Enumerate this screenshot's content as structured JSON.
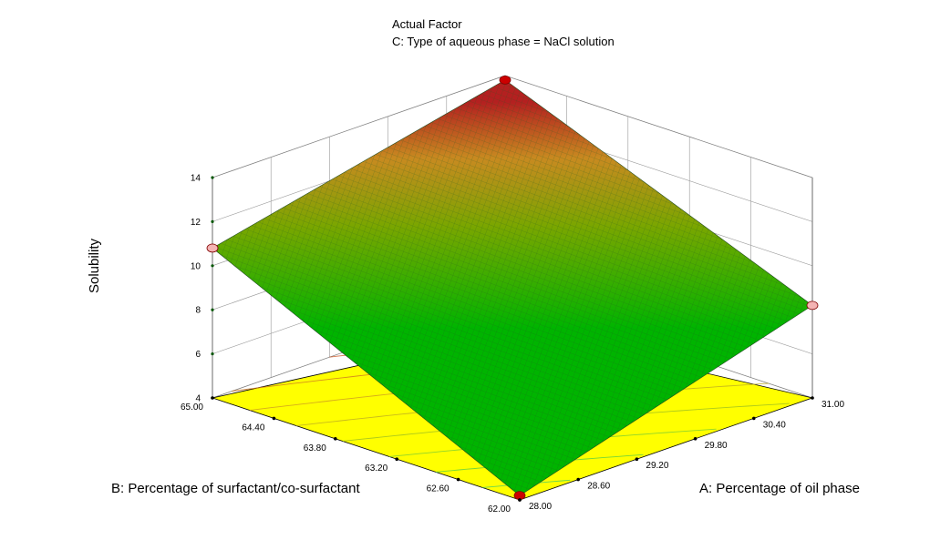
{
  "chart_data": {
    "type": "surface3d",
    "title": "Actual Factor",
    "subtitle": "C: Type of aqueous phase = NaCl solution",
    "xlabel": "A: Percentage of oil phase",
    "ylabel": "B: Percentage of surfactant/co-surfactant",
    "zlabel": "Solubility",
    "x_ticks": [
      "28.00",
      "28.60",
      "29.20",
      "29.80",
      "30.40",
      "31.00"
    ],
    "y_ticks": [
      "62.00",
      "62.60",
      "63.20",
      "63.80",
      "64.40",
      "65.00"
    ],
    "z_ticks": [
      "4",
      "6",
      "8",
      "10",
      "12",
      "14"
    ],
    "xlim": [
      28,
      31
    ],
    "ylim": [
      62,
      65
    ],
    "zlim": [
      4,
      14
    ],
    "surface_corners": [
      {
        "x": 28,
        "y": 62,
        "z": 4.2
      },
      {
        "x": 31,
        "y": 62,
        "z": 8.2
      },
      {
        "x": 28,
        "y": 65,
        "z": 10.8
      },
      {
        "x": 31,
        "y": 65,
        "z": 13.8
      }
    ],
    "design_points": [
      {
        "x": 28,
        "y": 62,
        "z": 4.2,
        "color": "#cc0000"
      },
      {
        "x": 31,
        "y": 62,
        "z": 8.2,
        "color": "#f4b4b4"
      },
      {
        "x": 28,
        "y": 65,
        "z": 10.8,
        "color": "#f4b4b4"
      },
      {
        "x": 31,
        "y": 65,
        "z": 13.8,
        "color": "#cc0000"
      }
    ],
    "colors": {
      "low": "#00b400",
      "mid": "#c8a000",
      "high": "#b42020",
      "floor": "#ffff00",
      "mesh": "#1f6b1f"
    }
  }
}
